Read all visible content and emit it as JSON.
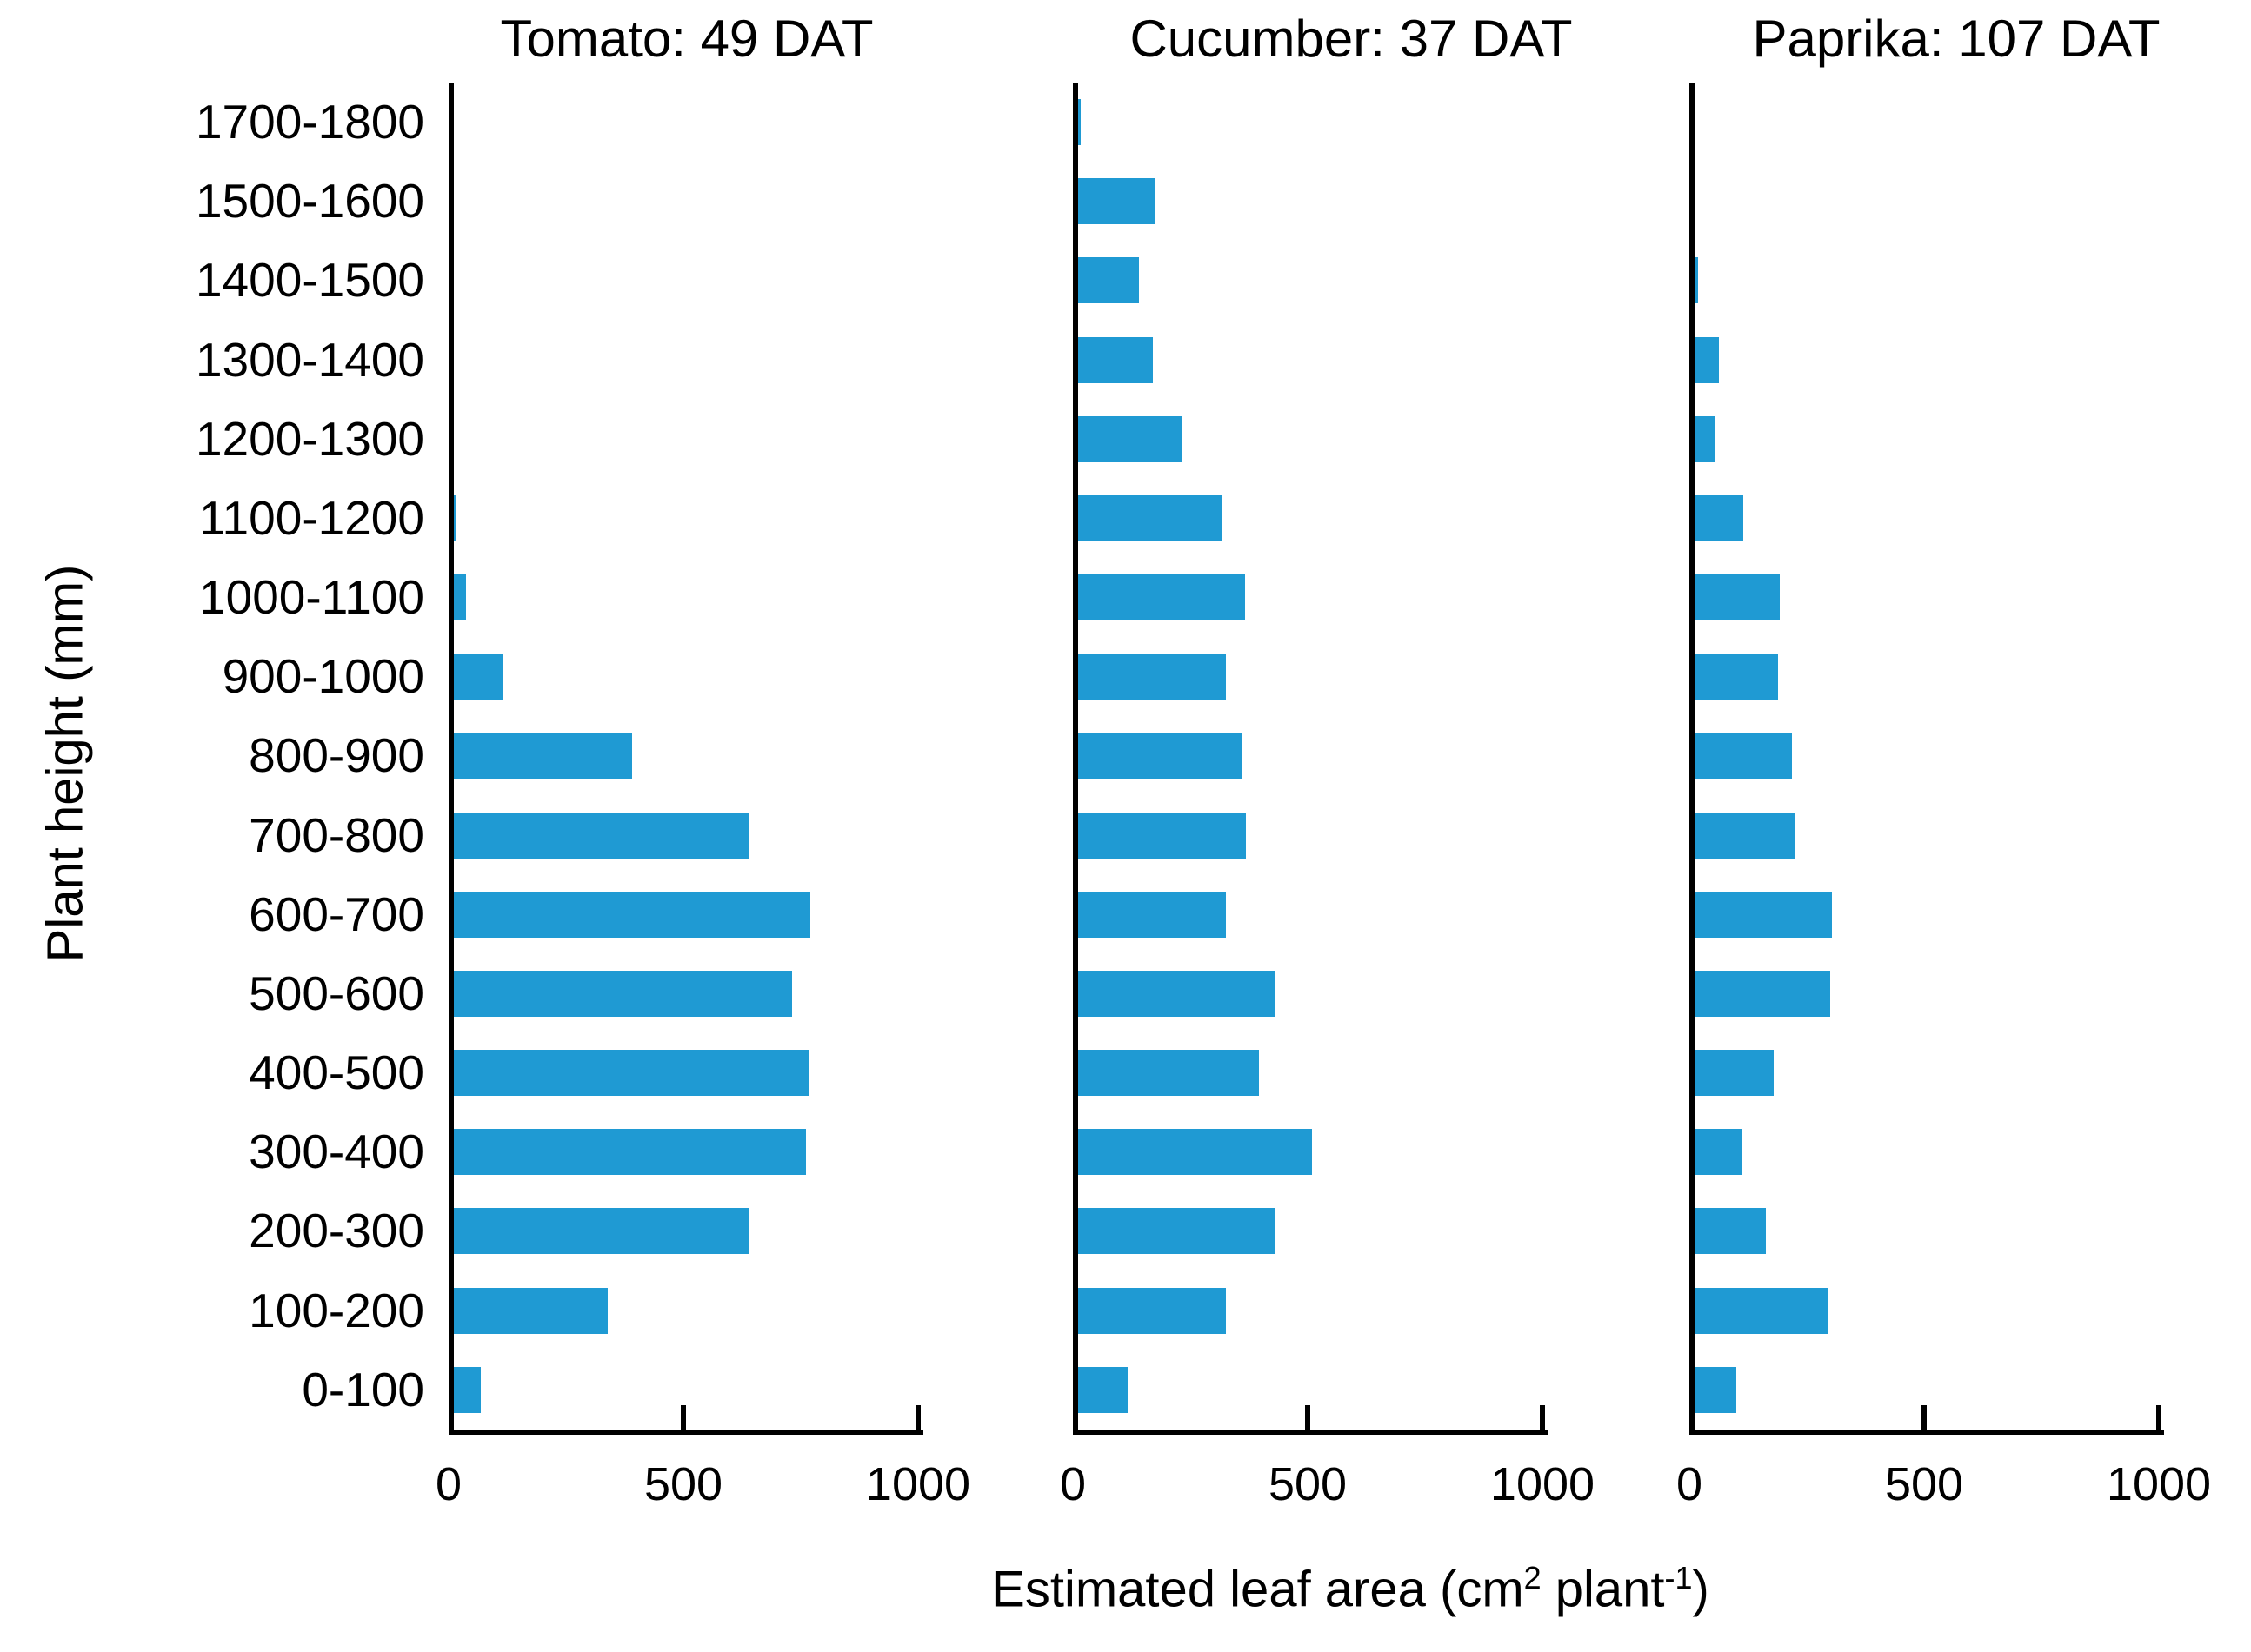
{
  "figure": {
    "y_axis_label": "Plant height (mm)",
    "x_axis_label": {
      "prefix": "Estimated leaf area (cm",
      "sup_area": "2",
      "mid": " plant",
      "sup_inverse": "-1",
      "suffix": ")"
    }
  },
  "chart_data": {
    "type": "bar",
    "orientation": "horizontal",
    "title": "",
    "xlabel": "Estimated leaf area (cm2 plant-1)",
    "ylabel": "Plant height (mm)",
    "xlim": [
      0,
      1000
    ],
    "x_ticks": [
      0,
      500,
      1000
    ],
    "grid": false,
    "legend": "none",
    "bar_color": "#1F9AD3",
    "axis_color": "#000000",
    "categories_top_to_bottom": [
      "1700-1800",
      "1500-1600",
      "1400-1500",
      "1300-1400",
      "1200-1300",
      "1100-1200",
      "1000-1100",
      "900-1000",
      "800-900",
      "700-800",
      "600-700",
      "500-600",
      "400-500",
      "300-400",
      "200-300",
      "100-200",
      "0-100"
    ],
    "series": [
      {
        "name": "Tomato: 49 DAT",
        "values": [
          0,
          0,
          0,
          0,
          0,
          6,
          25,
          105,
          380,
          630,
          760,
          720,
          757,
          750,
          628,
          328,
          58
        ]
      },
      {
        "name": "Cucumber: 37 DAT",
        "values": [
          5,
          165,
          130,
          160,
          220,
          305,
          355,
          315,
          350,
          358,
          315,
          418,
          385,
          498,
          420,
          315,
          105
        ]
      },
      {
        "name": "Paprika: 107 DAT",
        "values": [
          0,
          0,
          8,
          52,
          43,
          103,
          182,
          178,
          208,
          213,
          293,
          289,
          168,
          100,
          152,
          286,
          88
        ]
      }
    ]
  }
}
